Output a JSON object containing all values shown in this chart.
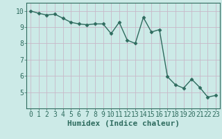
{
  "x": [
    0,
    1,
    2,
    3,
    4,
    5,
    6,
    7,
    8,
    9,
    10,
    11,
    12,
    13,
    14,
    15,
    16,
    17,
    18,
    19,
    20,
    21,
    22,
    23
  ],
  "y": [
    10.0,
    9.85,
    9.75,
    9.8,
    9.55,
    9.3,
    9.2,
    9.15,
    9.2,
    9.2,
    8.6,
    9.3,
    8.2,
    8.0,
    9.6,
    8.7,
    8.85,
    5.95,
    5.45,
    5.25,
    5.8,
    5.3,
    4.7,
    4.8
  ],
  "line_color": "#2e6b5e",
  "marker": "D",
  "markersize": 2.5,
  "linewidth": 1.0,
  "background_color": "#cceae7",
  "grid_color": "#c8b8c8",
  "xlabel": "Humidex (Indice chaleur)",
  "xlabel_fontsize": 8,
  "xlim": [
    -0.5,
    23.5
  ],
  "ylim": [
    4.0,
    10.5
  ],
  "yticks": [
    5,
    6,
    7,
    8,
    9,
    10
  ],
  "xticks": [
    0,
    1,
    2,
    3,
    4,
    5,
    6,
    7,
    8,
    9,
    10,
    11,
    12,
    13,
    14,
    15,
    16,
    17,
    18,
    19,
    20,
    21,
    22,
    23
  ],
  "tick_color": "#2e6b5e",
  "tick_labelsize": 7,
  "spine_color": "#2e6b5e"
}
